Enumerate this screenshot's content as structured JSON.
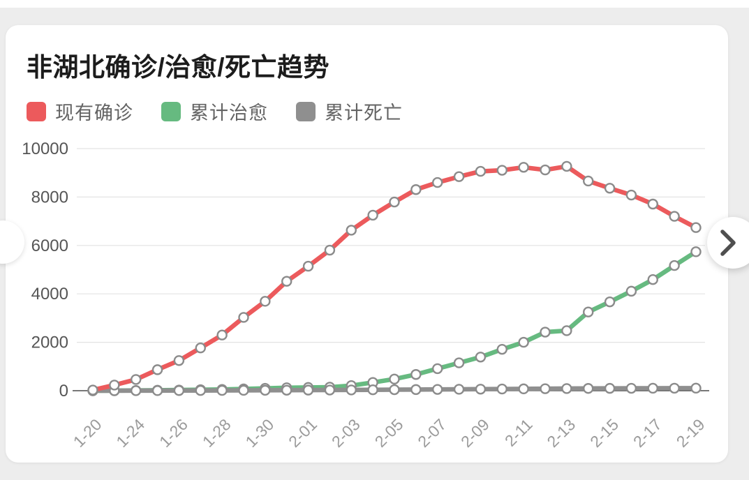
{
  "page": {
    "background": "#ededed",
    "card_background": "#ffffff"
  },
  "nav": {
    "next_icon": "chevron-right",
    "prev_icon": "chevron-left-hidden"
  },
  "chart_data": {
    "type": "line",
    "title": "非湖北确诊/治愈/死亡趋势",
    "xlabel": "",
    "ylabel": "",
    "ylim": [
      0,
      10000
    ],
    "y_ticks": [
      0,
      2000,
      4000,
      6000,
      8000,
      10000
    ],
    "grid": true,
    "legend_position": "top-left",
    "marker": {
      "fill": "#ffffff",
      "stroke": "#8b8b8b"
    },
    "colors": {
      "grid_line": "#e3e3e3",
      "axis_line": "#4a4a4a",
      "y_tick_text": "#555555",
      "x_tick_text": "#9b9b9b"
    },
    "x": [
      "1-20",
      "1-22",
      "1-24",
      "1-25",
      "1-26",
      "1-27",
      "1-28",
      "1-29",
      "1-30",
      "1-31",
      "2-01",
      "2-02",
      "2-03",
      "2-04",
      "2-05",
      "2-06",
      "2-07",
      "2-08",
      "2-09",
      "2-10",
      "2-11",
      "2-12",
      "2-13",
      "2-14",
      "2-15",
      "2-16",
      "2-17",
      "2-18",
      "2-19"
    ],
    "x_labels_shown": [
      "1-20",
      "1-24",
      "1-26",
      "1-28",
      "1-30",
      "2-01",
      "2-03",
      "2-05",
      "2-07",
      "2-09",
      "2-11",
      "2-13",
      "2-15",
      "2-17",
      "2-19"
    ],
    "x_label_every": 2,
    "series": [
      {
        "name": "现有确诊",
        "color": "#ec5a5c",
        "values": [
          26,
          233,
          463,
          868,
          1246,
          1766,
          2300,
          3027,
          3693,
          4518,
          5142,
          5806,
          6630,
          7250,
          7795,
          8307,
          8600,
          8841,
          9061,
          9106,
          9228,
          9119,
          9268,
          8661,
          8363,
          8082,
          7709,
          7202,
          6738
        ]
      },
      {
        "name": "累计治愈",
        "color": "#66ba80",
        "values": [
          0,
          2,
          10,
          18,
          28,
          40,
          52,
          72,
          98,
          122,
          133,
          145,
          210,
          340,
          480,
          670,
          910,
          1150,
          1390,
          1710,
          2000,
          2420,
          2480,
          3250,
          3670,
          4110,
          4590,
          5170,
          5740
        ]
      },
      {
        "name": "累计死亡",
        "color": "#8f8f8f",
        "values": [
          0,
          0,
          3,
          5,
          7,
          9,
          12,
          15,
          18,
          21,
          25,
          28,
          32,
          37,
          42,
          47,
          53,
          58,
          64,
          70,
          76,
          82,
          89,
          94,
          97,
          100,
          102,
          104,
          106
        ]
      }
    ]
  }
}
